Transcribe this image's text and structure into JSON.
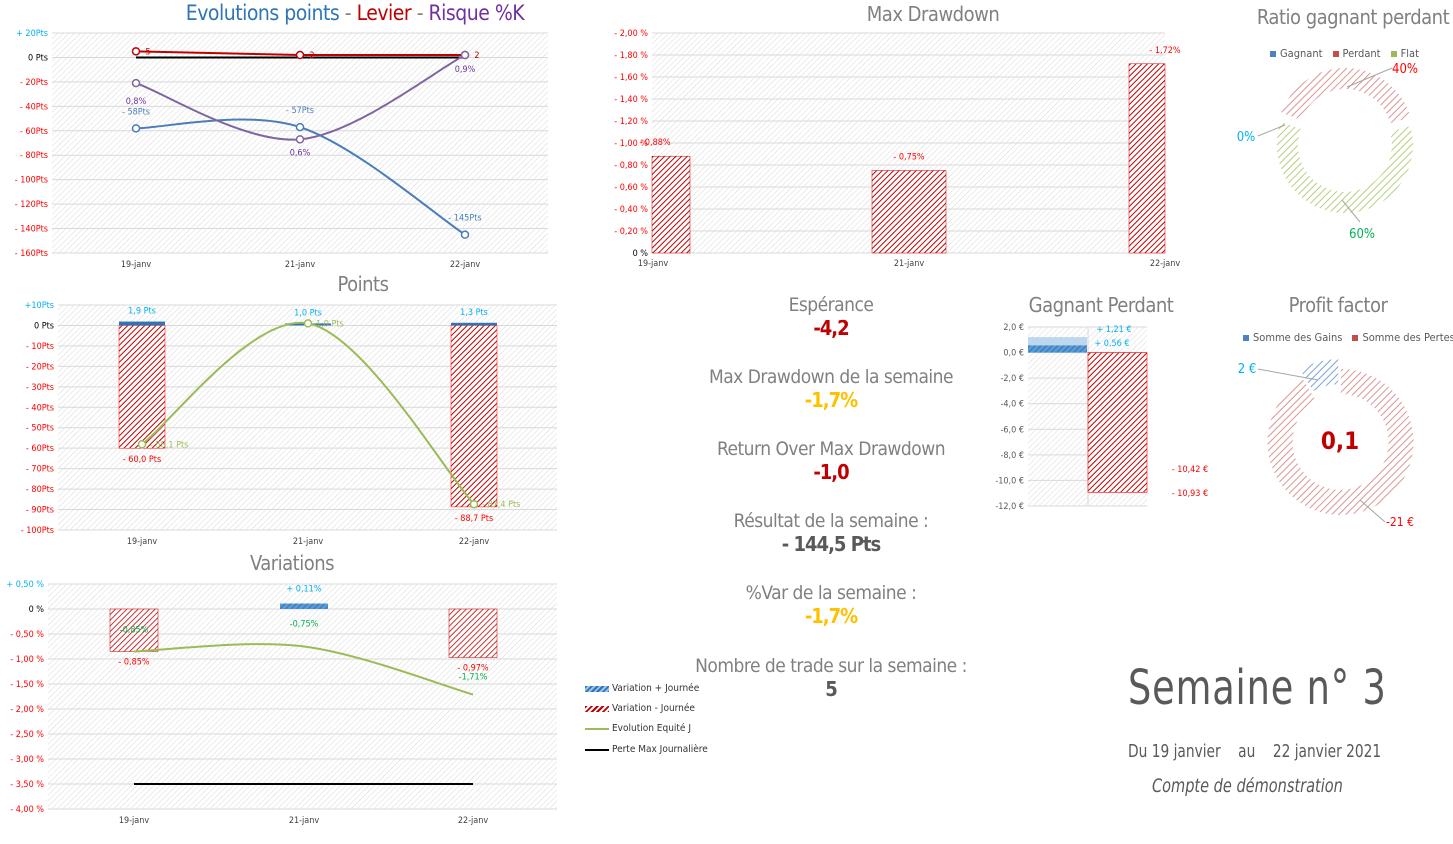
{
  "colors": {
    "blue": "#2e75b6",
    "red": "#c00000",
    "brightred": "#ff0000",
    "purple": "#7030a0",
    "green": "#9bbb59",
    "cyan": "#00b0f0",
    "gold": "#ffc000",
    "darkgreen": "#00b050",
    "gray": "#808080"
  },
  "chart_data": [
    {
      "id": "evolutions",
      "type": "line",
      "title_parts": [
        "Evolutions points",
        " - ",
        "Levier",
        " - ",
        "Risque %K"
      ],
      "categories": [
        "19-janv",
        "21-janv",
        "22-janv"
      ],
      "ylim": [
        -160,
        20
      ],
      "yticks": [
        "+ 20Pts",
        "0 Pts",
        "- 20Pts",
        "- 40Pts",
        "- 60Pts",
        "- 80Pts",
        "- 100Pts",
        "- 120Pts",
        "- 140Pts",
        "- 160Pts"
      ],
      "series": [
        {
          "key": "points",
          "values": [
            -58,
            -57,
            -145
          ],
          "labels": [
            "- 58Pts",
            "- 57Pts",
            "- 145Pts"
          ],
          "color": "#4a7ebb"
        },
        {
          "key": "levier",
          "values": [
            5,
            2,
            2
          ],
          "labels": [
            "5",
            "2",
            "2"
          ],
          "color": "#c00000"
        },
        {
          "key": "risque",
          "values": [
            0.8,
            0.6,
            0.9
          ],
          "labels": [
            "0,8%",
            "0,6%",
            "0,9%"
          ],
          "color": "#8064a2"
        }
      ],
      "reference_line": 0,
      "grid": true
    },
    {
      "id": "points",
      "type": "bar+line",
      "title": "Points",
      "categories": [
        "19-janv",
        "21-janv",
        "22-janv"
      ],
      "ylim": [
        -100,
        10
      ],
      "yticks": [
        "+10Pts",
        "0 Pts",
        "- 10Pts",
        "- 20Pts",
        "- 30Pts",
        "- 40Pts",
        "- 50Pts",
        "- 60Pts",
        "- 70Pts",
        "- 80Pts",
        "- 90Pts",
        "- 100Pts"
      ],
      "series": [
        {
          "key": "gain",
          "values": [
            1.9,
            1.0,
            1.3
          ],
          "labels": [
            "1,9 Pts",
            "1,0 Pts",
            "1,3 Pts"
          ]
        },
        {
          "key": "loss",
          "values": [
            -60.0,
            0,
            -88.7
          ],
          "labels": [
            "- 60,0 Pts",
            "",
            "- 88,7 Pts"
          ]
        },
        {
          "key": "net",
          "values": [
            -58.1,
            1.0,
            -87.4
          ],
          "labels": [
            "- 58,1 Pts",
            "1,0 Pts",
            "- 87,4 Pts"
          ]
        }
      ],
      "grid": true
    },
    {
      "id": "variations",
      "type": "bar+line",
      "title": "Variations",
      "categories": [
        "19-janv",
        "21-janv",
        "22-janv"
      ],
      "ylim": [
        -4,
        0.5
      ],
      "yticks": [
        "+ 0,50 %",
        "0 %",
        "- 0,50 %",
        "- 1,00 %",
        "- 1,50 %",
        "- 2,00 %",
        "- 2,50 %",
        "- 3,00 %",
        "- 3,50 %",
        "- 4,00 %"
      ],
      "series": [
        {
          "key": "plus",
          "name": "Variation + Journée",
          "values": [
            0,
            0.11,
            0
          ],
          "labels": [
            "",
            "+ 0,11%",
            ""
          ]
        },
        {
          "key": "minus",
          "name": "Variation - Journée",
          "values": [
            -0.85,
            0,
            -0.97
          ],
          "labels": [
            "- 0,85%",
            "",
            "- 0,97%"
          ]
        },
        {
          "key": "equity",
          "name": "Evolution  Equité J",
          "values": [
            -0.85,
            -0.75,
            -1.71
          ],
          "labels": [
            "-0,85%",
            "-0,75%",
            "-1,71%"
          ]
        },
        {
          "key": "maxloss",
          "name": "Perte Max Journalière",
          "values": [
            -3.5,
            -3.5,
            -3.5
          ]
        }
      ],
      "legend": "right",
      "grid": true
    },
    {
      "id": "drawdown",
      "type": "bar",
      "title": "Max Drawdown",
      "categories": [
        "19-janv",
        "21-janv",
        "22-janv"
      ],
      "ylim": [
        0,
        2
      ],
      "yticks": [
        "- 2,00 %",
        "- 1,80 %",
        "- 1,60 %",
        "- 1,40 %",
        "- 1,20 %",
        "- 1,00 %",
        "- 0,80 %",
        "- 0,60 %",
        "- 0,40 %",
        "- 0,20 %",
        "0 %"
      ],
      "values": [
        0.88,
        0.75,
        1.72
      ],
      "labels": [
        "- 0,88%",
        "- 0,75%",
        "- 1,72%"
      ],
      "grid": true
    },
    {
      "id": "ratio",
      "type": "pie",
      "title": "Ratio gagnant perdant",
      "legend": "top",
      "slices": [
        {
          "name": "Gagnant",
          "value": 0,
          "label": "0%"
        },
        {
          "name": "Perdant",
          "value": 40,
          "label": "40%"
        },
        {
          "name": "Flat",
          "value": 60,
          "label": "60%"
        }
      ]
    },
    {
      "id": "gagnant_perdant",
      "type": "bar",
      "title": "Gagnant Perdant",
      "ylim": [
        -12,
        2
      ],
      "yticks": [
        "2,0 €",
        "0,0 €",
        "-2,0 €",
        "-4,0 €",
        "-6,0 €",
        "-8,0 €",
        "-10,0 €",
        "-12,0 €"
      ],
      "gains": [
        0.56,
        1.21
      ],
      "gain_labels": [
        "+ 0,56 €",
        "+ 1,21 €"
      ],
      "losses": [
        -10.42,
        -10.93
      ],
      "loss_labels": [
        "- 10,42 €",
        "- 10,93 €"
      ],
      "grid": true
    },
    {
      "id": "profit_factor",
      "type": "pie",
      "title": "Profit factor",
      "legend": "top",
      "center_label": "0,1",
      "slices": [
        {
          "name": "Somme des Gains",
          "value": 2,
          "label": "2 €"
        },
        {
          "name": "Somme des Pertes",
          "value": 21,
          "label": "-21 €"
        }
      ]
    }
  ],
  "stats": [
    {
      "label": "Espérance",
      "value": "-4,2",
      "color": "#c00000"
    },
    {
      "label": "Max Drawdown de la semaine",
      "value": "-1,7%",
      "color": "#ffc000"
    },
    {
      "label": "Return Over Max Drawdown",
      "value": "-1,0",
      "color": "#c00000"
    },
    {
      "label": "Résultat de la semaine :",
      "value": "- 144,5 Pts",
      "color": "#595959"
    },
    {
      "label": "%Var de la semaine :",
      "value": "-1,7%",
      "color": "#ffc000"
    },
    {
      "label": "Nombre de trade sur la semaine :",
      "value": "5",
      "color": "#595959"
    }
  ],
  "week": {
    "title": "Semaine n° 3",
    "from_prefix": "Du 19 janvier",
    "sep": "au",
    "to": "22 janvier 2021",
    "account": "Compte de démonstration"
  }
}
